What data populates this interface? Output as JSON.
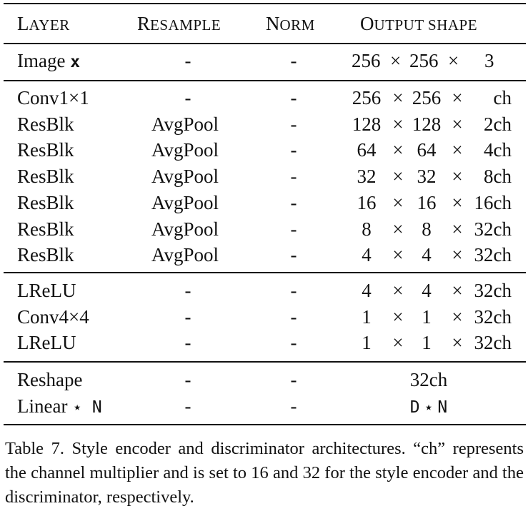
{
  "table": {
    "headers": {
      "layer": {
        "first": "L",
        "rest": "AYER"
      },
      "resample": {
        "first": "R",
        "rest": "ESAMPLE"
      },
      "norm": {
        "first": "N",
        "rest": "ORM"
      },
      "output": {
        "first": "O",
        "rest": "UTPUT SHAPE"
      }
    },
    "input_row": {
      "layer_prefix": "Image ",
      "layer_var": "x",
      "resample": "-",
      "norm": "-",
      "out": [
        "256",
        "×",
        "256",
        "×",
        "3"
      ]
    },
    "body_rows": [
      {
        "layer": "Conv1×1",
        "resample": "-",
        "norm": "-",
        "out": [
          "256",
          "×",
          "256",
          "×",
          "ch"
        ]
      },
      {
        "layer": "ResBlk",
        "resample": "AvgPool",
        "norm": "-",
        "out": [
          "128",
          "×",
          "128",
          "×",
          "2ch"
        ]
      },
      {
        "layer": "ResBlk",
        "resample": "AvgPool",
        "norm": "-",
        "out": [
          "64",
          "×",
          "64",
          "×",
          "4ch"
        ]
      },
      {
        "layer": "ResBlk",
        "resample": "AvgPool",
        "norm": "-",
        "out": [
          "32",
          "×",
          "32",
          "×",
          "8ch"
        ]
      },
      {
        "layer": "ResBlk",
        "resample": "AvgPool",
        "norm": "-",
        "out": [
          "16",
          "×",
          "16",
          "×",
          "16ch"
        ]
      },
      {
        "layer": "ResBlk",
        "resample": "AvgPool",
        "norm": "-",
        "out": [
          "8",
          "×",
          "8",
          "×",
          "32ch"
        ]
      },
      {
        "layer": "ResBlk",
        "resample": "AvgPool",
        "norm": "-",
        "out": [
          "4",
          "×",
          "4",
          "×",
          "32ch"
        ]
      }
    ],
    "tail_rows": [
      {
        "layer": "LReLU",
        "resample": "-",
        "norm": "-",
        "out": [
          "4",
          "×",
          "4",
          "×",
          "32ch"
        ]
      },
      {
        "layer": "Conv4×4",
        "resample": "-",
        "norm": "-",
        "out": [
          "1",
          "×",
          "1",
          "×",
          "32ch"
        ]
      },
      {
        "layer": "LReLU",
        "resample": "-",
        "norm": "-",
        "out": [
          "1",
          "×",
          "1",
          "×",
          "32ch"
        ]
      }
    ],
    "final_rows": [
      {
        "layer": "Reshape",
        "resample": "-",
        "norm": "-",
        "out": "32ch"
      },
      {
        "layer_prefix": "Linear ",
        "layer_star": "⋆",
        "layer_n": " N",
        "resample": "-",
        "norm": "-",
        "out_d": "D",
        "out_star": " ⋆ ",
        "out_n": "N"
      }
    ]
  },
  "caption": "Table 7. Style encoder and discriminator architectures. “ch” represents the channel multiplier and is set to 16 and 32 for the style encoder and the discriminator, respectively."
}
